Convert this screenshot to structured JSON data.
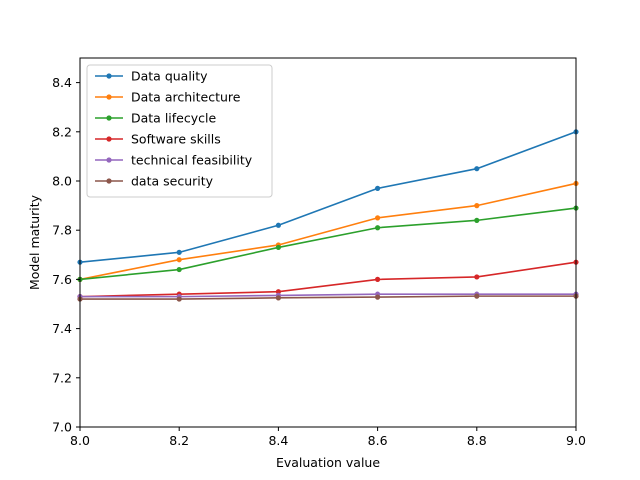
{
  "chart_data": {
    "type": "line",
    "title": "",
    "xlabel": "Evaluation value",
    "ylabel": "Model maturity",
    "xlim": [
      8.0,
      9.0
    ],
    "ylim": [
      7.0,
      8.5
    ],
    "xticks": [
      8.0,
      8.2,
      8.4,
      8.6,
      8.8,
      9.0
    ],
    "xtick_labels": [
      "8.0",
      "8.2",
      "8.4",
      "8.6",
      "8.8",
      "9.0"
    ],
    "yticks": [
      7.0,
      7.2,
      7.4,
      7.6,
      7.8,
      8.0,
      8.2,
      8.4
    ],
    "ytick_labels": [
      "7.0",
      "7.2",
      "7.4",
      "7.6",
      "7.8",
      "8.0",
      "8.2",
      "8.4"
    ],
    "grid": false,
    "legend_position": "top-left",
    "x": [
      8.0,
      8.2,
      8.4,
      8.6,
      8.8,
      9.0
    ],
    "series": [
      {
        "name": "Data quality",
        "color": "#1f77b4",
        "values": [
          7.67,
          7.71,
          7.82,
          7.97,
          8.05,
          8.2
        ]
      },
      {
        "name": "Data architecture",
        "color": "#ff7f0e",
        "values": [
          7.6,
          7.68,
          7.74,
          7.85,
          7.9,
          7.99
        ]
      },
      {
        "name": "Data lifecycle",
        "color": "#2ca02c",
        "values": [
          7.6,
          7.64,
          7.73,
          7.81,
          7.84,
          7.89
        ]
      },
      {
        "name": "Software skills",
        "color": "#d62728",
        "values": [
          7.53,
          7.54,
          7.55,
          7.6,
          7.61,
          7.67
        ]
      },
      {
        "name": "technical feasibility",
        "color": "#9467bd",
        "values": [
          7.53,
          7.53,
          7.535,
          7.54,
          7.54,
          7.54
        ]
      },
      {
        "name": "data security",
        "color": "#8c564b",
        "values": [
          7.52,
          7.52,
          7.525,
          7.528,
          7.532,
          7.532
        ]
      }
    ]
  }
}
